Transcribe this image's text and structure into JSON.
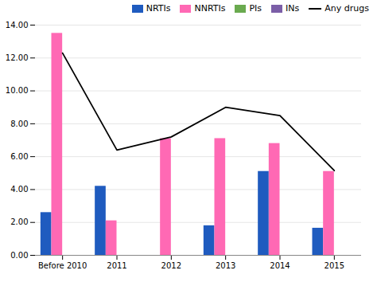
{
  "chart_data": {
    "type": "bar",
    "categories": [
      "Before 2010",
      "2011",
      "2012",
      "2013",
      "2014",
      "2015"
    ],
    "series": [
      {
        "name": "NRTIs",
        "color": "#1f5bbf",
        "values": [
          2.6,
          4.2,
          0.0,
          1.8,
          5.1,
          1.65
        ]
      },
      {
        "name": "NNRTIs",
        "color": "#ff69b4",
        "values": [
          13.5,
          2.1,
          7.1,
          7.1,
          6.8,
          5.1
        ]
      },
      {
        "name": "PIs",
        "color": "#6aaa4f",
        "values": [
          0.0,
          0.0,
          0.0,
          0.0,
          0.0,
          0.0
        ]
      },
      {
        "name": "INs",
        "color": "#7b5ea7",
        "values": [
          0.0,
          0.0,
          0.0,
          0.0,
          0.0,
          0.0
        ]
      },
      {
        "name": "Any drugs",
        "type": "line",
        "color": "#000000",
        "values": [
          12.3,
          6.4,
          7.2,
          9.0,
          8.5,
          5.15
        ]
      }
    ],
    "ylim": [
      0,
      14
    ],
    "yticks": [
      {
        "value": 0,
        "label": "0.00"
      },
      {
        "value": 2,
        "label": "2.00"
      },
      {
        "value": 4,
        "label": "4.00"
      },
      {
        "value": 6,
        "label": "6.00"
      },
      {
        "value": 8,
        "label": "8.00"
      },
      {
        "value": 10,
        "label": "10.00"
      },
      {
        "value": 12,
        "label": "12.00"
      },
      {
        "value": 14,
        "label": "14.00"
      }
    ],
    "grid": true,
    "legend": "upper right"
  }
}
